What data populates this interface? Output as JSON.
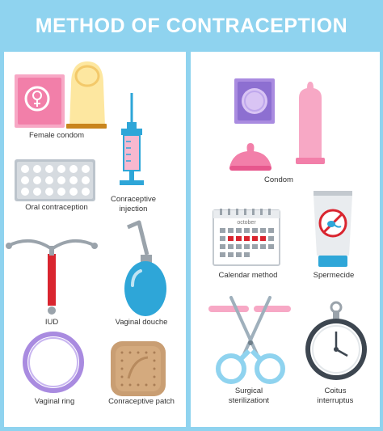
{
  "title": "METHOD OF CONTRACEPTION",
  "left_items": [
    {
      "label": "Female condom",
      "icon": "female-condom-icon"
    },
    {
      "label": "Conraceptive\ninjection",
      "icon": "syringe-icon"
    },
    {
      "label": "Oral contraception",
      "icon": "pill-pack-icon"
    },
    {
      "label": "IUD",
      "icon": "iud-icon"
    },
    {
      "label": "Vaginal douche",
      "icon": "douche-bulb-icon"
    },
    {
      "label": "Vaginal ring",
      "icon": "vaginal-ring-icon"
    },
    {
      "label": "Conraceptive patch",
      "icon": "patch-icon"
    }
  ],
  "right_items": [
    {
      "label": "Condom",
      "icon": "condom-icon"
    },
    {
      "label": "Calendar method",
      "icon": "calendar-icon",
      "calendar_month": "october"
    },
    {
      "label": "Spermecide",
      "icon": "spermicide-tube-icon"
    },
    {
      "label": "Surgical\nsterilizationt",
      "icon": "scissors-icon"
    },
    {
      "label": "Coitus\ninterruptus",
      "icon": "stopwatch-icon"
    }
  ],
  "colors": {
    "background": "#8fd3ef",
    "pink": "#f27fa9",
    "light_pink": "#f7b8cf",
    "yellow": "#fde7a0",
    "blue": "#2ea6d8",
    "red": "#d9252f",
    "purple": "#a98be0"
  }
}
